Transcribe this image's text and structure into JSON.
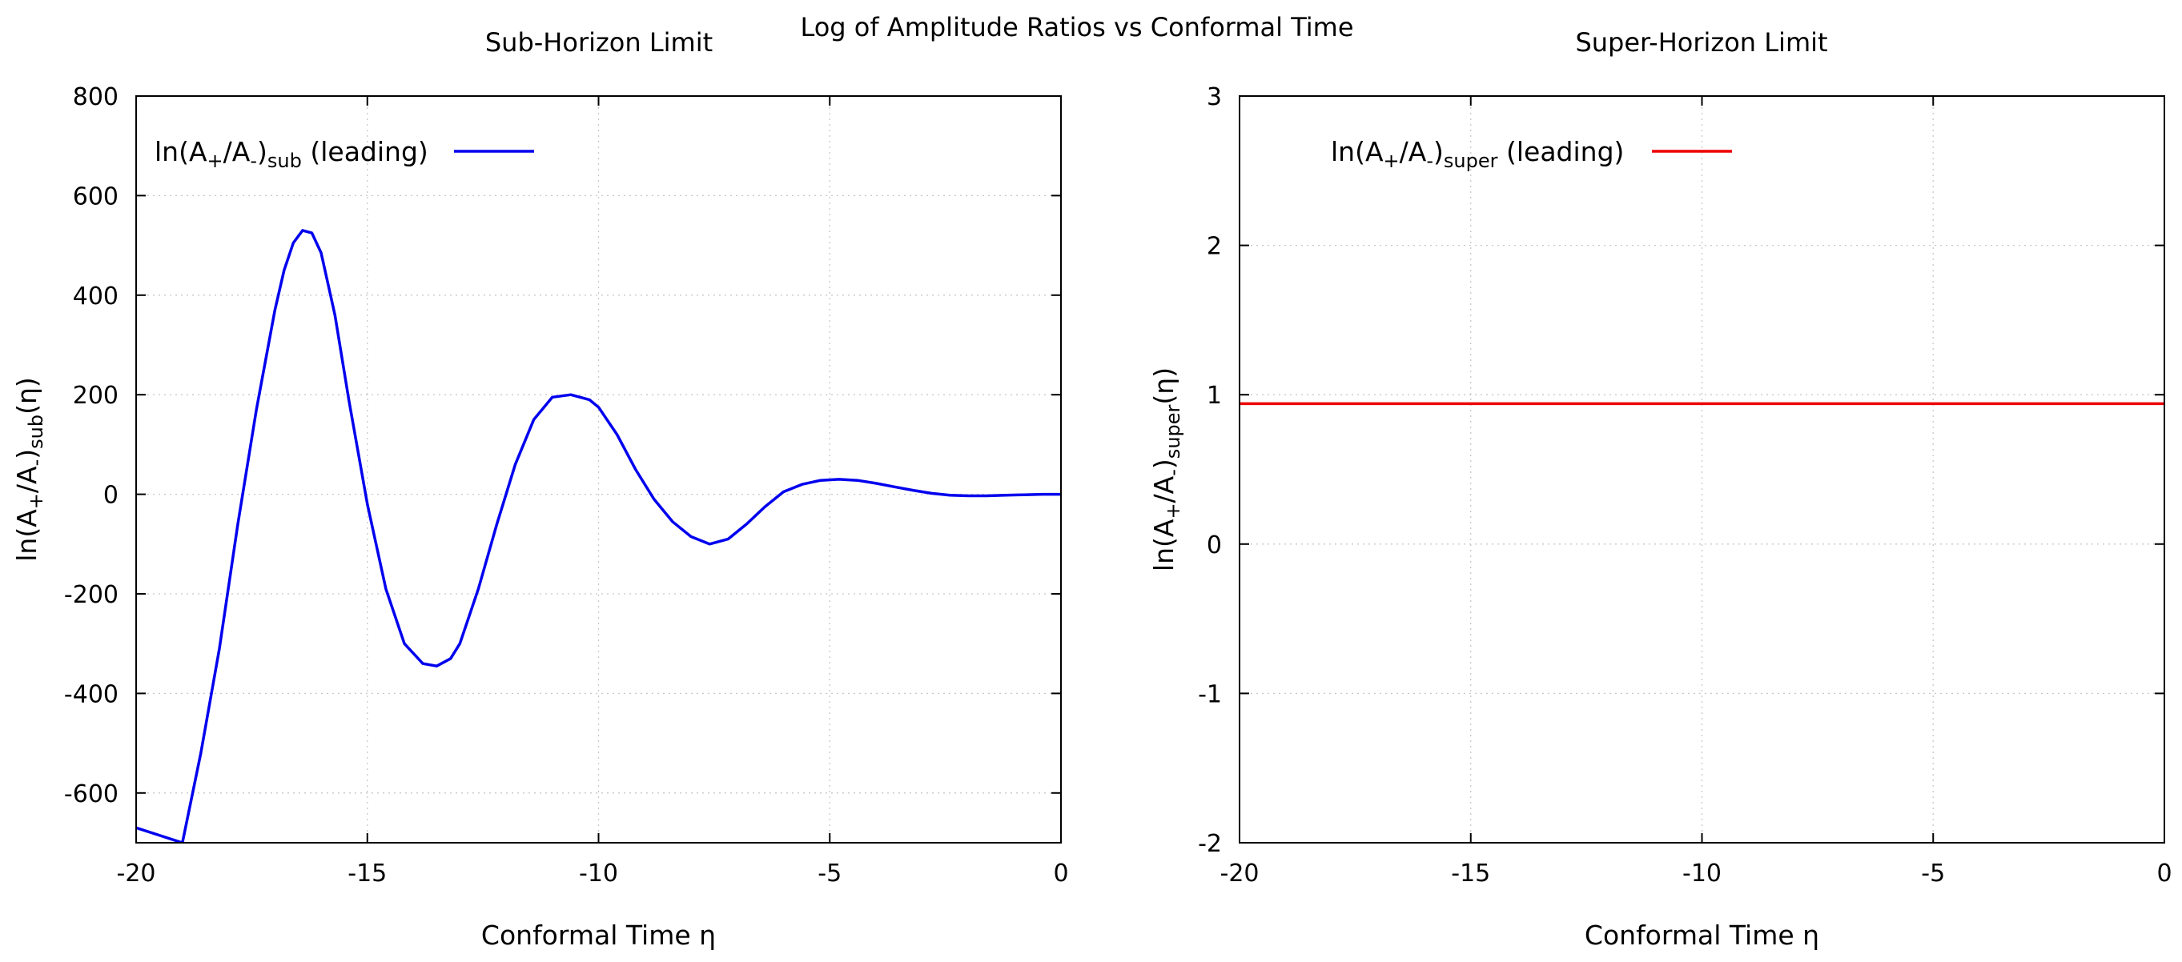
{
  "figure_title": "Log of Amplitude Ratios vs Conformal Time",
  "chart_data": [
    {
      "type": "line",
      "title": "Sub-Horizon Limit",
      "xlabel": "Conformal Time η",
      "ylabel": {
        "base": "ln(A",
        "plus": "+",
        "mid": "/A",
        "minus": "-",
        "close": ")",
        "subscript": "sub",
        "tail": "(η)"
      },
      "xlim": [
        -20,
        0
      ],
      "ylim": [
        -700,
        800
      ],
      "xticks": [
        -20,
        -15,
        -10,
        -5,
        0
      ],
      "yticks": [
        -600,
        -400,
        -200,
        0,
        200,
        400,
        600,
        800
      ],
      "grid": true,
      "legend": {
        "position": "top-left",
        "text": {
          "base": "ln(A",
          "plus": "+",
          "mid": "/A",
          "minus": "-",
          "close": ")",
          "subscript": "sub",
          "tail": " (leading)"
        }
      },
      "series": [
        {
          "name": "ln(A+/A-)sub (leading)",
          "color": "#0000ee",
          "x": [
            -20.0,
            -19.0,
            -18.6,
            -18.2,
            -17.8,
            -17.4,
            -17.0,
            -16.8,
            -16.6,
            -16.4,
            -16.2,
            -16.0,
            -15.7,
            -15.4,
            -15.0,
            -14.6,
            -14.2,
            -13.8,
            -13.5,
            -13.2,
            -13.0,
            -12.6,
            -12.2,
            -11.8,
            -11.4,
            -11.0,
            -10.6,
            -10.2,
            -10.0,
            -9.6,
            -9.2,
            -8.8,
            -8.4,
            -8.0,
            -7.6,
            -7.2,
            -6.8,
            -6.4,
            -6.0,
            -5.6,
            -5.2,
            -4.8,
            -4.4,
            -4.0,
            -3.6,
            -3.2,
            -2.8,
            -2.4,
            -2.0,
            -1.6,
            -1.2,
            -0.8,
            -0.4,
            0.0
          ],
          "y": [
            -670,
            -700,
            -520,
            -310,
            -60,
            170,
            370,
            450,
            505,
            530,
            525,
            485,
            360,
            190,
            -20,
            -190,
            -300,
            -340,
            -345,
            -330,
            -300,
            -190,
            -60,
            60,
            150,
            195,
            200,
            190,
            175,
            120,
            50,
            -10,
            -55,
            -85,
            -100,
            -90,
            -60,
            -25,
            5,
            20,
            28,
            30,
            28,
            22,
            15,
            8,
            2,
            -2,
            -3,
            -3,
            -2,
            -1,
            0,
            0
          ]
        }
      ]
    },
    {
      "type": "line",
      "title": "Super-Horizon Limit",
      "xlabel": "Conformal Time η",
      "ylabel": {
        "base": "ln(A",
        "plus": "+",
        "mid": "/A",
        "minus": "-",
        "close": ")",
        "subscript": "super",
        "tail": "(η)"
      },
      "xlim": [
        -20,
        0
      ],
      "ylim": [
        -2,
        3
      ],
      "xticks": [
        -20,
        -15,
        -10,
        -5,
        0
      ],
      "yticks": [
        -2,
        -1,
        0,
        1,
        2,
        3
      ],
      "grid": true,
      "legend": {
        "position": "top-left",
        "text": {
          "base": "ln(A",
          "plus": "+",
          "mid": "/A",
          "minus": "-",
          "close": ")",
          "subscript": "super",
          "tail": " (leading)"
        }
      },
      "series": [
        {
          "name": "ln(A+/A-)super (leading)",
          "color": "#ee0000",
          "x": [
            -20,
            0
          ],
          "y": [
            0.94,
            0.94
          ]
        }
      ]
    }
  ]
}
